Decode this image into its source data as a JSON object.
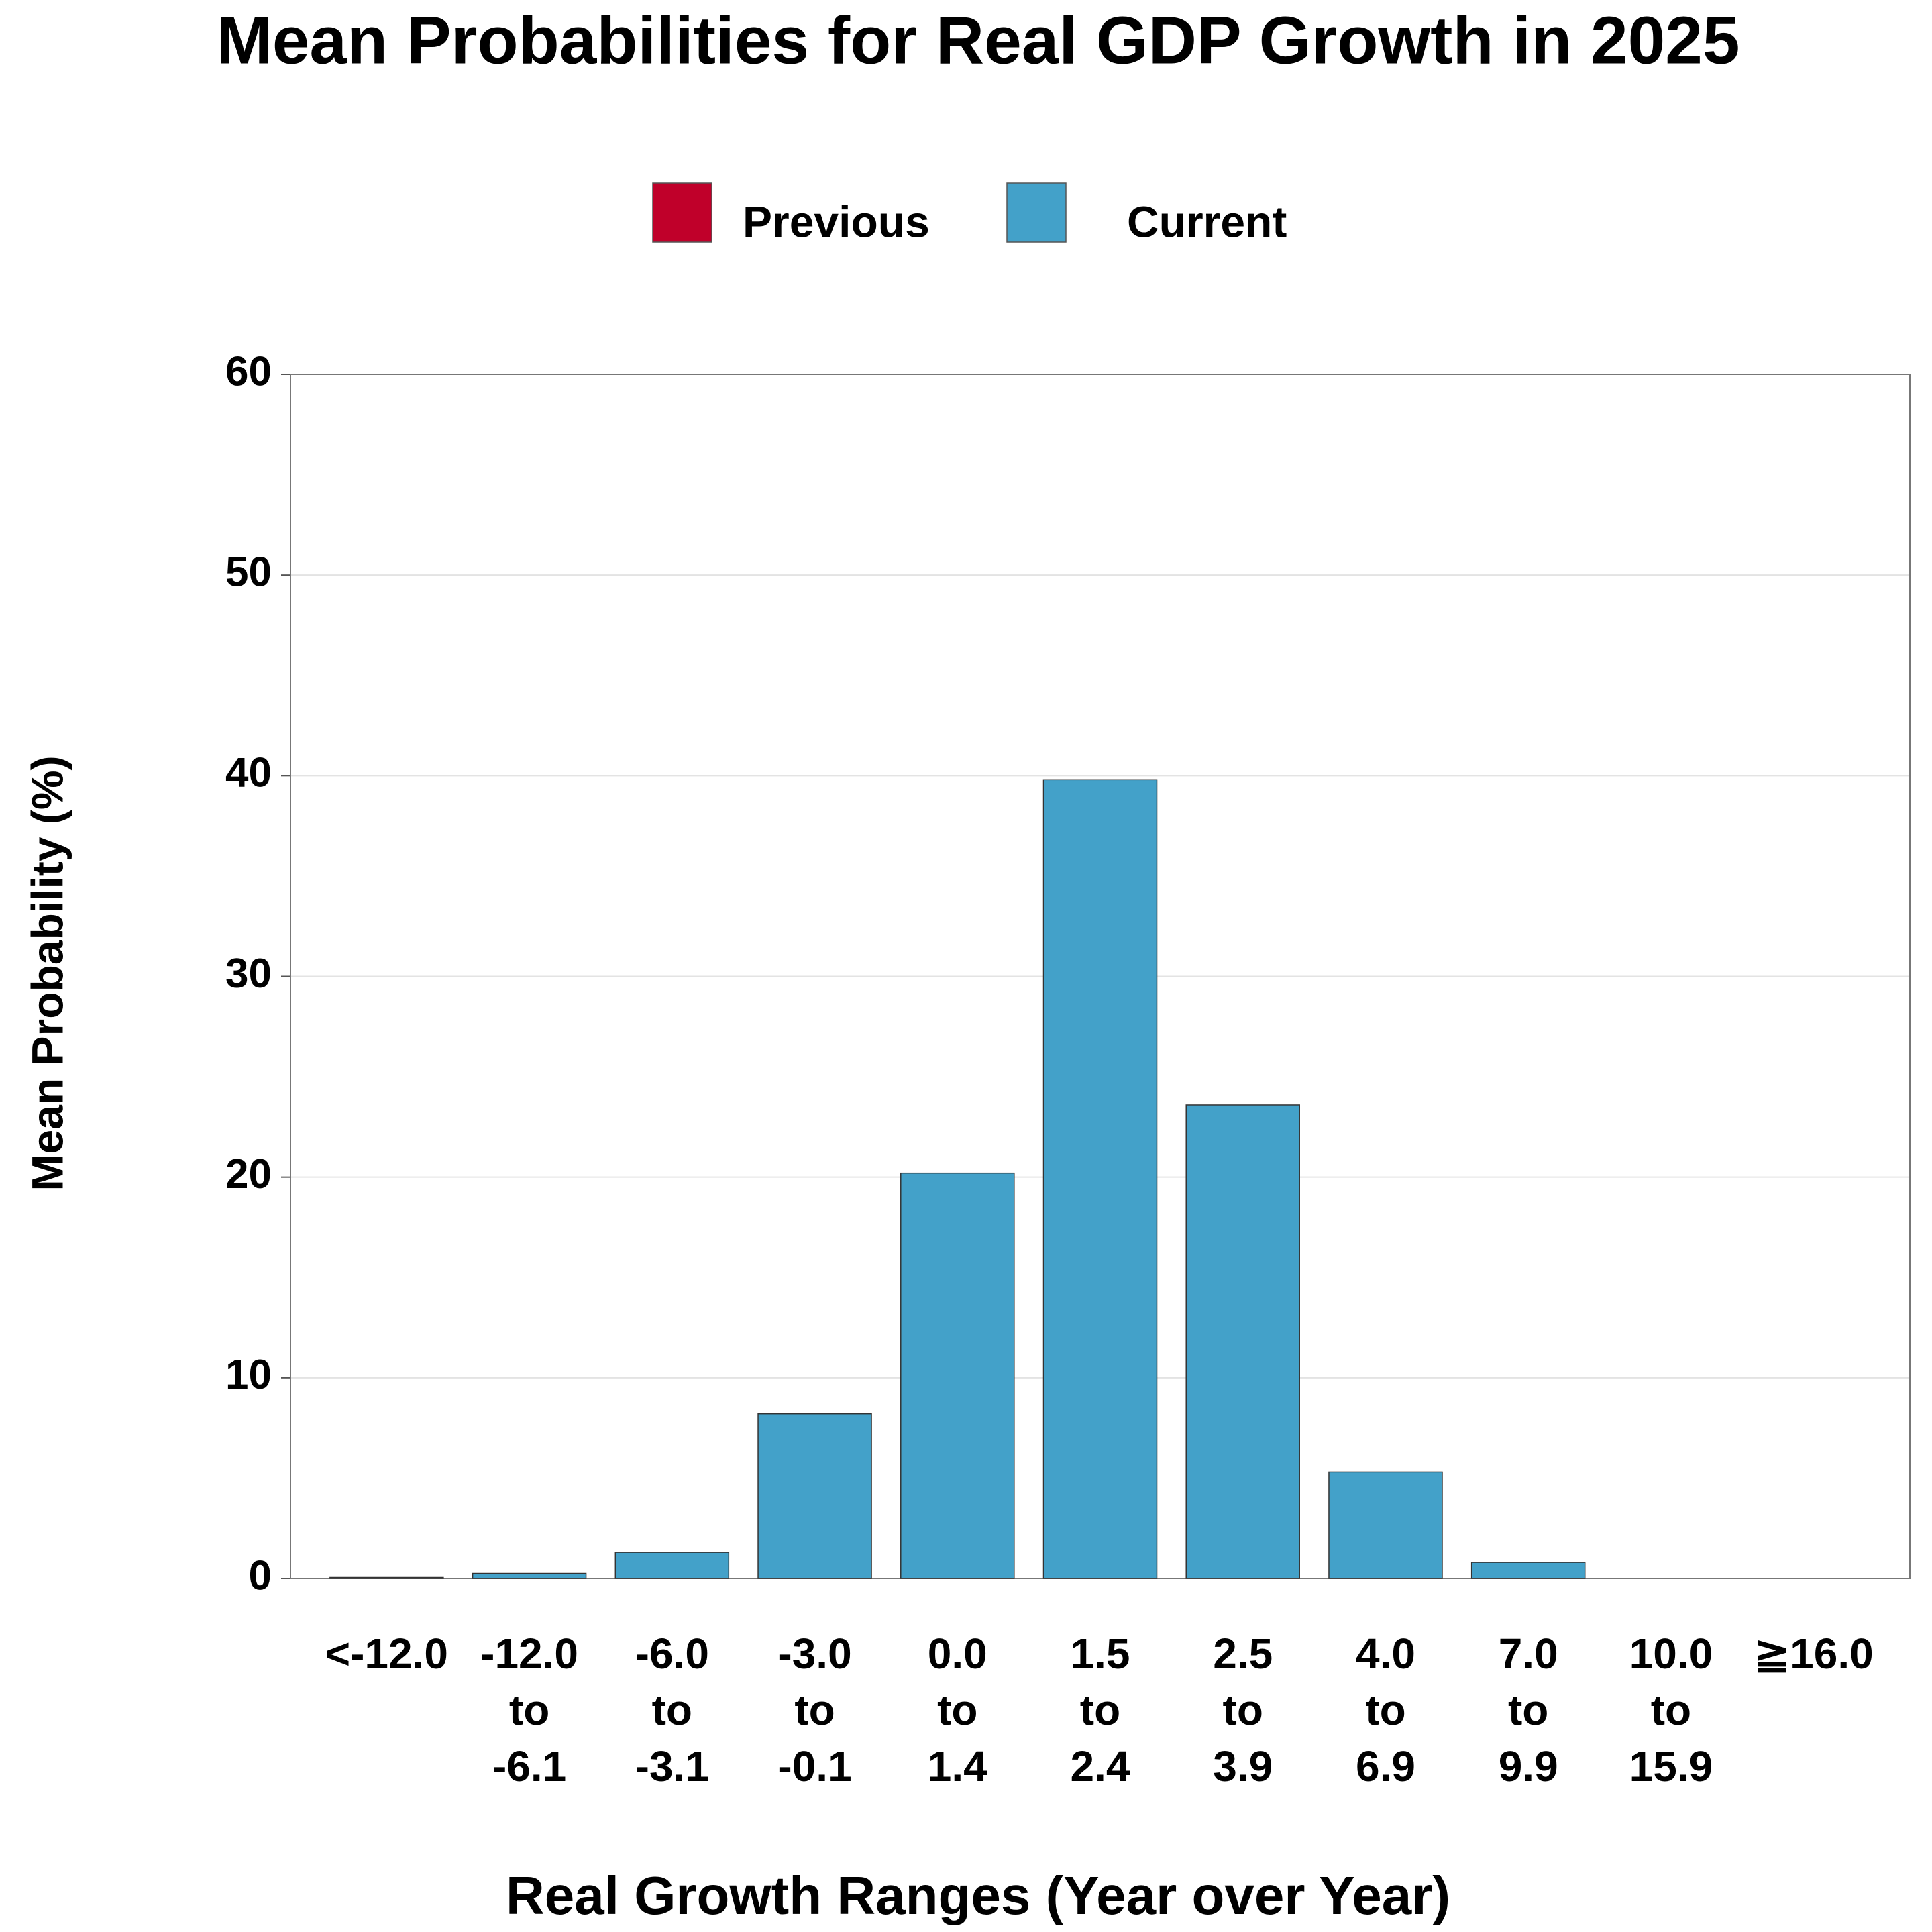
{
  "chart_data": {
    "type": "bar",
    "title": "Mean Probabilities for Real GDP Growth in 2025",
    "x_label": "Real Growth Ranges (Year over Year)",
    "y_label": "Mean Probability (%)",
    "categories": [
      "<-12.0",
      "-12.0\nto\n-6.1",
      "-6.0\nto\n-3.1",
      "-3.0\nto\n-0.1",
      "0.0\nto\n1.4",
      "1.5\nto\n2.4",
      "2.5\nto\n3.9",
      "4.0\nto\n6.9",
      "7.0\nto\n9.9",
      "10.0\nto\n15.9",
      "≧16.0"
    ],
    "series": [
      {
        "name": "Previous",
        "color": "#c0002a",
        "values": [
          null,
          null,
          null,
          null,
          null,
          null,
          null,
          null,
          null,
          null,
          null
        ]
      },
      {
        "name": "Current",
        "color": "#43a1c9",
        "values": [
          0.05,
          0.25,
          1.3,
          8.2,
          20.2,
          39.8,
          23.6,
          5.3,
          0.8,
          0,
          0
        ]
      }
    ],
    "ylim": [
      0,
      60
    ],
    "yticks": [
      0,
      10,
      20,
      30,
      40,
      50,
      60
    ],
    "grid": true,
    "legend": "top"
  }
}
